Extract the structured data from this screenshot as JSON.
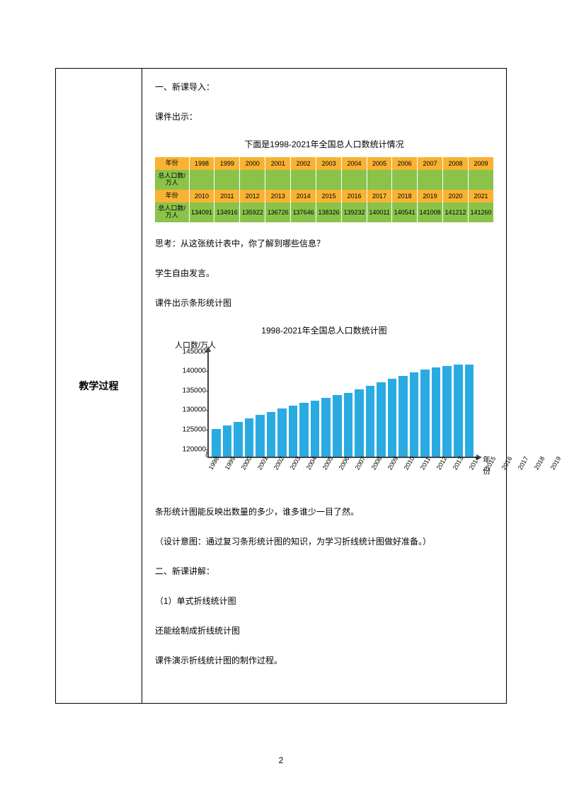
{
  "layout": {
    "left_heading": "教学过程"
  },
  "text": {
    "s1": "一、新课导入：",
    "s2": "课件出示：",
    "table_title": "下面是1998-2021年全国总人口数统计情况",
    "s3": "思考：从这张统计表中，你了解到哪些信息？",
    "s4": "学生自由发言。",
    "s5": "课件出示条形统计图",
    "chart_title": "1998-2021年全国总人口数统计图",
    "s6": "条形统计图能反映出数量的多少，谁多谁少一目了然。",
    "s7": "（设计意图：通过复习条形统计图的知识，为学习折线统计图做好准备。）",
    "s8": "二、新课讲解：",
    "s9": "（1）单式折线统计图",
    "s10": "还能绘制成折线统计图",
    "s11": "课件演示折线统计图的制作过程。"
  },
  "table": {
    "row_label_year": "年份",
    "row_label_pop": "总人口数/万人",
    "header_bg": "#f9b233",
    "value_bg": "#8bc34a",
    "years1": [
      "1998",
      "1999",
      "2000",
      "2001",
      "2002",
      "2003",
      "2004",
      "2005",
      "2006",
      "2007",
      "2008",
      "2009"
    ],
    "vals1": [
      "",
      "",
      "",
      "",
      "",
      "",
      "",
      "",
      "",
      "",
      "",
      ""
    ],
    "years2": [
      "2010",
      "2011",
      "2012",
      "2013",
      "2014",
      "2015",
      "2016",
      "2017",
      "2018",
      "2019",
      "2020",
      "2021"
    ],
    "vals2": [
      "134091",
      "134916",
      "135922",
      "136726",
      "137646",
      "138326",
      "139232",
      "140011",
      "140541",
      "141008",
      "141212",
      "141260"
    ]
  },
  "chart": {
    "type": "bar",
    "y_label": "人口数/万人",
    "x_label": "年份",
    "bar_color": "#29abe2",
    "axis_color": "#444444",
    "ylim_min": 120000,
    "ylim_max": 145000,
    "ytick_step": 5000,
    "yticks": [
      120000,
      125000,
      130000,
      135000,
      140000,
      145000
    ],
    "axis_break_bottom": 120000,
    "years": [
      "1998",
      "1999",
      "2000",
      "2001",
      "2002",
      "2003",
      "2004",
      "2005",
      "2006",
      "2007",
      "2008",
      "2009",
      "2010",
      "2011",
      "2012",
      "2013",
      "2014",
      "2015",
      "2016",
      "2017",
      "2018",
      "2019",
      "2020",
      "2021"
    ],
    "values": [
      124800,
      125800,
      126700,
      127600,
      128500,
      129200,
      130000,
      130800,
      131500,
      132100,
      132800,
      133500,
      134091,
      134916,
      135922,
      136726,
      137646,
      138326,
      139232,
      140011,
      140541,
      141008,
      141212,
      141260
    ]
  },
  "page_number": "2"
}
